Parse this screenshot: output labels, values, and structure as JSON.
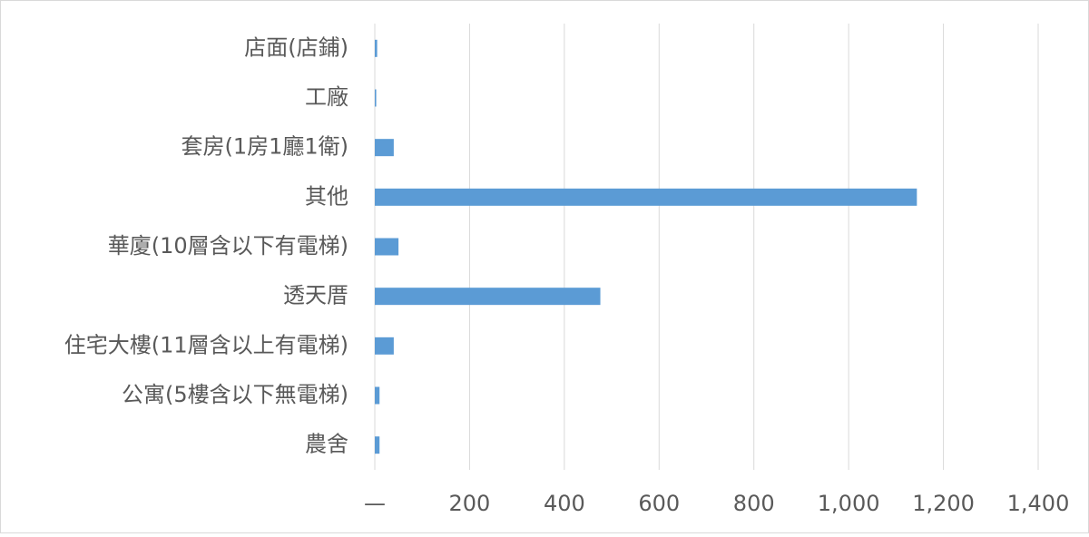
{
  "chart_data": {
    "type": "bar",
    "orientation": "horizontal",
    "categories": [
      "店面(店鋪)",
      "工廠",
      "套房(1房1廳1衛)",
      "其他",
      "華廈(10層含以下有電梯)",
      "透天厝",
      "住宅大樓(11層含以上有電梯)",
      "公寓(5樓含以下無電梯)",
      "農舍"
    ],
    "values": [
      5,
      3,
      40,
      1144,
      50,
      476,
      40,
      10,
      10
    ],
    "color": "#5b9bd5",
    "xlim": [
      0,
      1400
    ],
    "xticks": [
      {
        "value": 0,
        "label": "—"
      },
      200,
      400,
      600,
      800,
      {
        "value": 1000,
        "label": "1,000"
      },
      {
        "value": 1200,
        "label": "1,200"
      },
      {
        "value": 1400,
        "label": "1,400"
      }
    ],
    "grid": true
  }
}
